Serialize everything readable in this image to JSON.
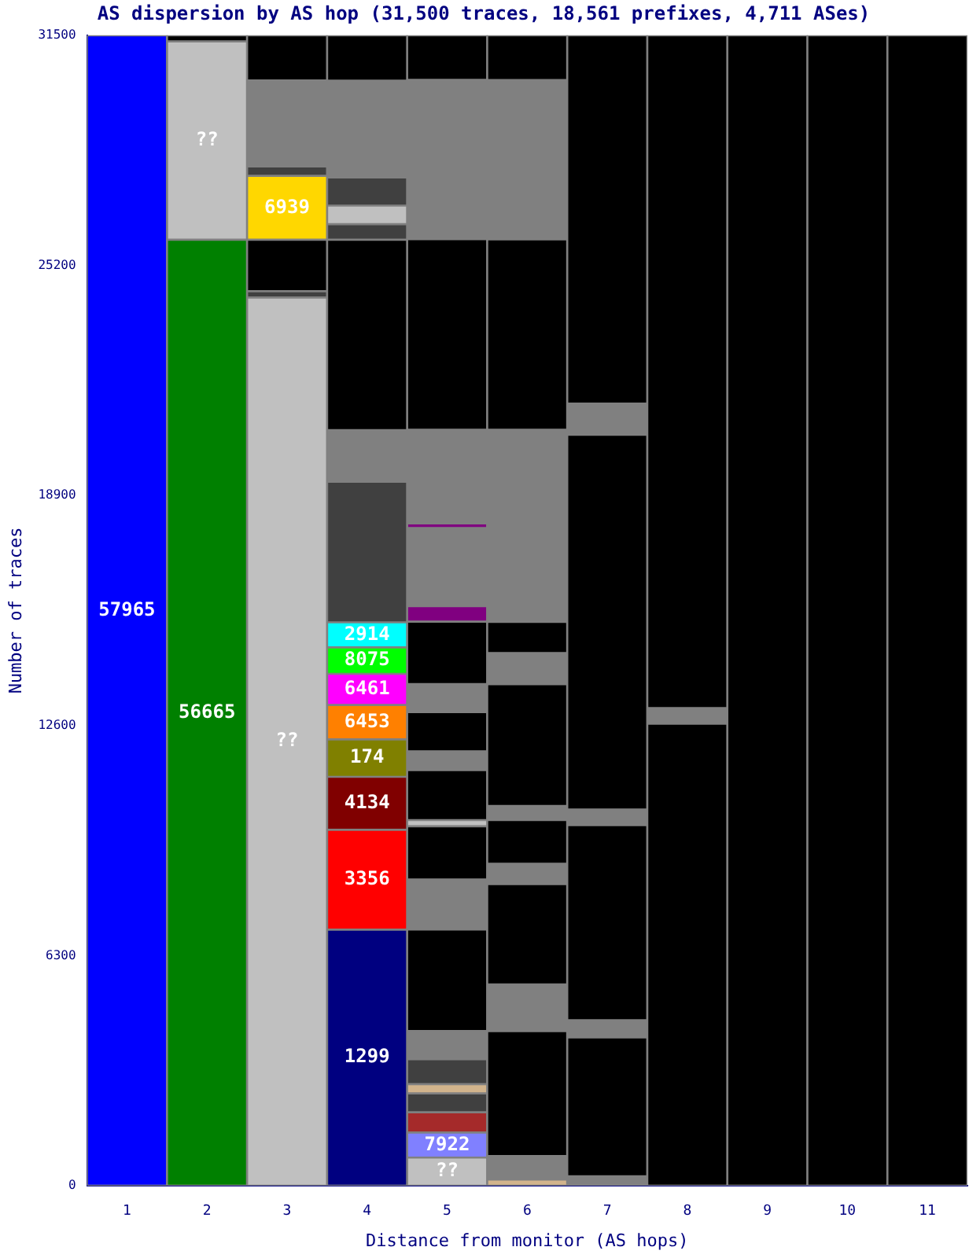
{
  "chart_data": {
    "type": "bar",
    "stacked": true,
    "title": "AS dispersion by AS hop (31,500 traces, 18,561 prefixes, 4,711 ASes)",
    "xlabel": "Distance from monitor (AS hops)",
    "ylabel": "Number of traces",
    "categories": [
      "1",
      "2",
      "3",
      "4",
      "5",
      "6",
      "7",
      "8",
      "9",
      "10",
      "11"
    ],
    "ylim": [
      0,
      31500
    ],
    "yticks": [
      0,
      6300,
      12600,
      18900,
      25200,
      31500
    ],
    "grid": false,
    "legend": false,
    "series": [
      {
        "name": "57965",
        "color": "#0000ff",
        "values": [
          31500,
          null,
          null,
          null,
          null,
          null,
          null,
          null,
          null,
          null,
          null
        ]
      },
      {
        "name": "56665",
        "color": "#008000",
        "values": [
          null,
          25900,
          null,
          null,
          null,
          null,
          null,
          null,
          null,
          null,
          null
        ]
      },
      {
        "name": "??",
        "color": "#c0c0c0",
        "values": [
          null,
          null,
          24320,
          null,
          null,
          null,
          null,
          null,
          null,
          null,
          null
        ]
      },
      {
        "name": "1299",
        "color": "#000080",
        "values": [
          null,
          null,
          null,
          7010,
          null,
          null,
          null,
          null,
          null,
          null,
          null
        ]
      },
      {
        "name": "??",
        "color": "#c0c0c0",
        "values": [
          null,
          null,
          null,
          null,
          770,
          null,
          null,
          null,
          null,
          null,
          null
        ]
      },
      {
        "values": [
          null,
          null,
          null,
          null,
          null,
          170,
          255,
          12650,
          31500,
          31500,
          31500
        ],
        "colors": [
          null,
          null,
          null,
          null,
          null,
          "#d2b48c",
          "#808080",
          "#000000",
          "#000000",
          "#000000",
          "#000000"
        ]
      },
      {
        "name": "??",
        "color": "#c0c0c0",
        "values": [
          null,
          5430,
          null,
          null,
          null,
          null,
          null,
          null,
          null,
          null,
          null
        ]
      },
      {
        "name": "3356",
        "color": "#ff0000",
        "values": [
          null,
          null,
          null,
          2735,
          null,
          null,
          null,
          null,
          null,
          null,
          null
        ]
      },
      {
        "name": "7922",
        "color": "#8080ff",
        "values": [
          null,
          null,
          null,
          null,
          685,
          null,
          null,
          null,
          null,
          null,
          null
        ]
      },
      {
        "values": [
          null,
          null,
          170,
          null,
          null,
          640,
          3805,
          425,
          null,
          null,
          null
        ],
        "colors": [
          null,
          null,
          "#404040",
          null,
          null,
          "#808080",
          "#000000",
          "#808080",
          null,
          null,
          null
        ]
      },
      {
        "name": "4134",
        "color": "#800000",
        "values": [
          null,
          null,
          null,
          1450,
          null,
          null,
          null,
          null,
          null,
          null,
          null
        ]
      },
      {
        "values": [
          null,
          170,
          1410,
          null,
          555,
          3420,
          470,
          18425,
          null,
          null,
          null
        ],
        "colors": [
          null,
          "#000000",
          "#000000",
          null,
          "#a52a2a",
          "#000000",
          "#808080",
          "#000000",
          null,
          null,
          null
        ]
      },
      {
        "name": "6939",
        "color": "#ffd700",
        "values": [
          null,
          null,
          1750,
          null,
          null,
          null,
          null,
          null,
          null,
          null,
          null
        ]
      },
      {
        "name": "174",
        "color": "#808000",
        "values": [
          null,
          null,
          null,
          1025,
          null,
          null,
          null,
          null,
          null,
          null,
          null
        ]
      },
      {
        "values": [
          null,
          null,
          null,
          null,
          515,
          1280,
          5345,
          null,
          null,
          null,
          null
        ],
        "colors": [
          null,
          null,
          null,
          null,
          "#404040",
          "#808080",
          "#000000",
          null,
          null,
          null,
          null
        ]
      },
      {
        "name": "6453",
        "color": "#ff8000",
        "values": [
          null,
          null,
          null,
          940,
          null,
          null,
          null,
          null,
          null,
          null,
          null
        ]
      },
      {
        "values": [
          null,
          null,
          260,
          null,
          255,
          2750,
          425,
          null,
          null,
          null,
          null
        ],
        "colors": [
          null,
          null,
          "#404040",
          null,
          "#d2b48c",
          "#000000",
          "#808080",
          null,
          null,
          null,
          null
        ]
      },
      {
        "name": "6461",
        "color": "#ff00ff",
        "values": [
          null,
          null,
          null,
          855,
          null,
          null,
          null,
          null,
          null,
          null,
          null
        ]
      },
      {
        "values": [
          null,
          null,
          2350,
          null,
          685,
          555,
          10260,
          null,
          null,
          null,
          null
        ],
        "colors": [
          null,
          null,
          "#808080",
          null,
          "#404040",
          "#808080",
          "#000000",
          null,
          null,
          null,
          null
        ]
      },
      {
        "name": "8075",
        "color": "#00ff00",
        "values": [
          null,
          null,
          null,
          725,
          null,
          null,
          null,
          null,
          null,
          null,
          null
        ]
      },
      {
        "values": [
          null,
          null,
          1240,
          null,
          770,
          1195,
          855,
          null,
          null,
          null,
          null
        ],
        "colors": [
          null,
          null,
          "#000000",
          null,
          "#808080",
          "#000000",
          "#808080",
          null,
          null,
          null,
          null
        ]
      },
      {
        "name": "2914",
        "color": "#00ffff",
        "values": [
          null,
          null,
          null,
          685,
          null,
          null,
          null,
          null,
          null,
          null,
          null
        ]
      },
      {
        "values": [
          null,
          null,
          null,
          null,
          2780,
          385,
          10085,
          null,
          null,
          null,
          null
        ],
        "colors": [
          null,
          null,
          null,
          null,
          "#000000",
          "#808080",
          "#000000",
          null,
          null,
          null,
          null
        ]
      },
      {
        "values": [
          null,
          null,
          null,
          3850,
          1370,
          3335,
          null,
          null,
          null,
          null,
          null
        ],
        "colors": [
          null,
          null,
          null,
          "#404040",
          "#808080",
          "#000000",
          null,
          null,
          null,
          null,
          null
        ]
      },
      {
        "values": [
          null,
          null,
          null,
          1410,
          1455,
          855,
          null,
          null,
          null,
          null,
          null
        ],
        "colors": [
          null,
          null,
          null,
          "#808080",
          "#000000",
          "#808080",
          null,
          null,
          null,
          null,
          null
        ]
      },
      {
        "values": [
          null,
          null,
          null,
          5215,
          170,
          855,
          null,
          null,
          null,
          null,
          null
        ],
        "colors": [
          null,
          null,
          null,
          "#000000",
          "#c0c0c0",
          "#000000",
          null,
          null,
          null,
          null,
          null
        ]
      },
      {
        "values": [
          null,
          null,
          null,
          425,
          1370,
          5255,
          null,
          null,
          null,
          null,
          null
        ],
        "colors": [
          null,
          null,
          null,
          "#404040",
          "#000000",
          "#808080",
          null,
          null,
          null,
          null,
          null
        ]
      },
      {
        "values": [
          null,
          null,
          null,
          510,
          515,
          5215,
          null,
          null,
          null,
          null,
          null
        ],
        "colors": [
          null,
          null,
          null,
          "#c0c0c0",
          "#808080",
          "#000000",
          null,
          null,
          null,
          null,
          null
        ]
      },
      {
        "values": [
          null,
          null,
          null,
          770,
          1070,
          4360,
          null,
          null,
          null,
          null,
          null
        ],
        "colors": [
          null,
          null,
          null,
          "#404040",
          "#000000",
          "#808080",
          null,
          null,
          null,
          null,
          null
        ]
      },
      {
        "values": [
          null,
          null,
          null,
          2650,
          770,
          1230,
          null,
          null,
          null,
          null,
          null
        ],
        "colors": [
          null,
          null,
          null,
          "#808080",
          "#808080",
          "#000000",
          null,
          null,
          null,
          null,
          null
        ]
      },
      {
        "values": [
          null,
          null,
          null,
          1245,
          1710,
          null,
          null,
          null,
          null,
          null,
          null
        ],
        "colors": [
          null,
          null,
          null,
          "#000000",
          "#000000",
          null,
          null,
          null,
          null,
          null,
          null
        ]
      },
      {
        "values": [
          null,
          null,
          null,
          null,
          425,
          null,
          null,
          null,
          null,
          null,
          null
        ],
        "colors": [
          null,
          null,
          null,
          null,
          "#800080",
          null,
          null,
          null,
          null,
          null,
          null
        ]
      },
      {
        "values": [
          null,
          null,
          null,
          null,
          2135,
          null,
          null,
          null,
          null,
          null,
          null
        ],
        "colors": [
          null,
          null,
          null,
          null,
          "#808080",
          null,
          null,
          null,
          null,
          null,
          null
        ]
      },
      {
        "values": [
          null,
          null,
          null,
          null,
          130,
          null,
          null,
          null,
          null,
          null,
          null
        ],
        "colors": [
          null,
          null,
          null,
          null,
          "#800080",
          null,
          null,
          null,
          null,
          null,
          null
        ]
      },
      {
        "values": [
          null,
          null,
          null,
          null,
          2565,
          null,
          null,
          null,
          null,
          null,
          null
        ],
        "colors": [
          null,
          null,
          null,
          null,
          "#808080",
          null,
          null,
          null,
          null,
          null,
          null
        ]
      },
      {
        "values": [
          null,
          null,
          null,
          null,
          5215,
          null,
          null,
          null,
          null,
          null,
          null
        ],
        "colors": [
          null,
          null,
          null,
          null,
          "#000000",
          null,
          null,
          null,
          null,
          null,
          null
        ]
      },
      {
        "values": [
          null,
          null,
          null,
          null,
          4360,
          null,
          null,
          null,
          null,
          null,
          null
        ],
        "colors": [
          null,
          null,
          null,
          null,
          "#808080",
          null,
          null,
          null,
          null,
          null,
          null
        ]
      },
      {
        "values": [
          null,
          null,
          null,
          null,
          1225,
          null,
          null,
          null,
          null,
          null,
          null
        ],
        "colors": [
          null,
          null,
          null,
          null,
          "#000000",
          null,
          null,
          null,
          null,
          null,
          null
        ]
      }
    ]
  }
}
